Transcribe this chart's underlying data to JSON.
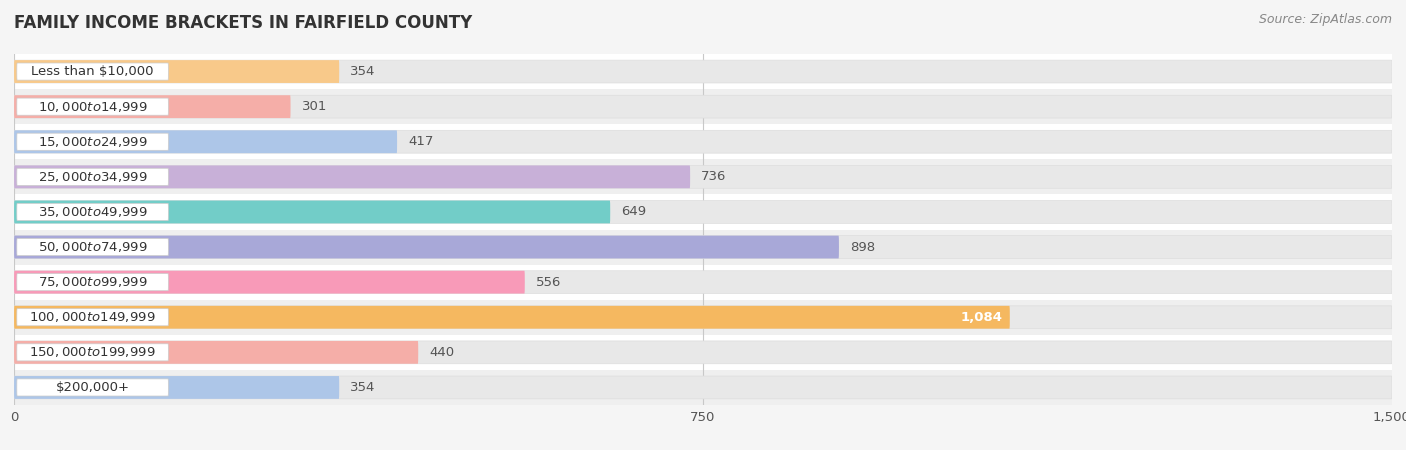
{
  "title": "FAMILY INCOME BRACKETS IN FAIRFIELD COUNTY",
  "source": "Source: ZipAtlas.com",
  "categories": [
    "Less than $10,000",
    "$10,000 to $14,999",
    "$15,000 to $24,999",
    "$25,000 to $34,999",
    "$35,000 to $49,999",
    "$50,000 to $74,999",
    "$75,000 to $99,999",
    "$100,000 to $149,999",
    "$150,000 to $199,999",
    "$200,000+"
  ],
  "values": [
    354,
    301,
    417,
    736,
    649,
    898,
    556,
    1084,
    440,
    354
  ],
  "bar_colors": [
    "#f8c98a",
    "#f5aea8",
    "#adc6e8",
    "#c8b0d8",
    "#72cdc8",
    "#a8a8d8",
    "#f89ab8",
    "#f5b860",
    "#f5aea8",
    "#adc6e8"
  ],
  "xlim": [
    0,
    1500
  ],
  "xticks": [
    0,
    750,
    1500
  ],
  "bar_height": 0.65,
  "label_fontsize": 9.5,
  "value_fontsize": 9.5,
  "title_fontsize": 12,
  "source_fontsize": 9,
  "highlight_index": 7,
  "row_colors": [
    "#ffffff",
    "#efefef"
  ]
}
